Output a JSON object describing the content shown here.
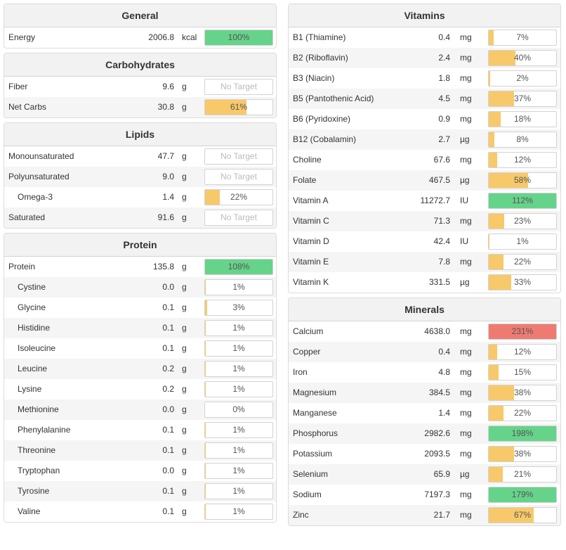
{
  "colors": {
    "under": "#f7c96a",
    "good": "#66d38a",
    "over": "#ee7b72"
  },
  "general": {
    "title": "General",
    "rows": [
      {
        "name": "Energy",
        "amount": "2006.8",
        "unit": "kcal",
        "pct_label": "100%",
        "level": 1.0,
        "status": "good"
      }
    ]
  },
  "carbohydrates": {
    "title": "Carbohydrates",
    "rows": [
      {
        "name": "Fiber",
        "amount": "9.6",
        "unit": "g",
        "pct_label": "No Target",
        "level": 0,
        "status": "none"
      },
      {
        "name": "Net Carbs",
        "amount": "30.8",
        "unit": "g",
        "pct_label": "61%",
        "level": 0.61,
        "status": "under"
      }
    ]
  },
  "lipids": {
    "title": "Lipids",
    "rows": [
      {
        "name": "Monounsaturated",
        "amount": "47.7",
        "unit": "g",
        "pct_label": "No Target",
        "level": 0,
        "status": "none"
      },
      {
        "name": "Polyunsaturated",
        "amount": "9.0",
        "unit": "g",
        "pct_label": "No Target",
        "level": 0,
        "status": "none"
      },
      {
        "name": "Omega-3",
        "amount": "1.4",
        "unit": "g",
        "pct_label": "22%",
        "level": 0.22,
        "status": "under",
        "sub": true
      },
      {
        "name": "Saturated",
        "amount": "91.6",
        "unit": "g",
        "pct_label": "No Target",
        "level": 0,
        "status": "none"
      }
    ]
  },
  "protein": {
    "title": "Protein",
    "rows": [
      {
        "name": "Protein",
        "amount": "135.8",
        "unit": "g",
        "pct_label": "108%",
        "level": 1.0,
        "status": "good"
      },
      {
        "name": "Cystine",
        "amount": "0.0",
        "unit": "g",
        "pct_label": "1%",
        "level": 0.01,
        "status": "under",
        "sub": true
      },
      {
        "name": "Glycine",
        "amount": "0.1",
        "unit": "g",
        "pct_label": "3%",
        "level": 0.03,
        "status": "under",
        "sub": true
      },
      {
        "name": "Histidine",
        "amount": "0.1",
        "unit": "g",
        "pct_label": "1%",
        "level": 0.01,
        "status": "under",
        "sub": true
      },
      {
        "name": "Isoleucine",
        "amount": "0.1",
        "unit": "g",
        "pct_label": "1%",
        "level": 0.01,
        "status": "under",
        "sub": true
      },
      {
        "name": "Leucine",
        "amount": "0.2",
        "unit": "g",
        "pct_label": "1%",
        "level": 0.01,
        "status": "under",
        "sub": true
      },
      {
        "name": "Lysine",
        "amount": "0.2",
        "unit": "g",
        "pct_label": "1%",
        "level": 0.01,
        "status": "under",
        "sub": true
      },
      {
        "name": "Methionine",
        "amount": "0.0",
        "unit": "g",
        "pct_label": "0%",
        "level": 0,
        "status": "under",
        "sub": true
      },
      {
        "name": "Phenylalanine",
        "amount": "0.1",
        "unit": "g",
        "pct_label": "1%",
        "level": 0.01,
        "status": "under",
        "sub": true
      },
      {
        "name": "Threonine",
        "amount": "0.1",
        "unit": "g",
        "pct_label": "1%",
        "level": 0.01,
        "status": "under",
        "sub": true
      },
      {
        "name": "Tryptophan",
        "amount": "0.0",
        "unit": "g",
        "pct_label": "1%",
        "level": 0.01,
        "status": "under",
        "sub": true
      },
      {
        "name": "Tyrosine",
        "amount": "0.1",
        "unit": "g",
        "pct_label": "1%",
        "level": 0.01,
        "status": "under",
        "sub": true
      },
      {
        "name": "Valine",
        "amount": "0.1",
        "unit": "g",
        "pct_label": "1%",
        "level": 0.01,
        "status": "under",
        "sub": true
      }
    ]
  },
  "vitamins": {
    "title": "Vitamins",
    "rows": [
      {
        "name": "B1 (Thiamine)",
        "amount": "0.4",
        "unit": "mg",
        "pct_label": "7%",
        "level": 0.07,
        "status": "under"
      },
      {
        "name": "B2 (Riboflavin)",
        "amount": "2.4",
        "unit": "mg",
        "pct_label": "40%",
        "level": 0.4,
        "status": "under"
      },
      {
        "name": "B3 (Niacin)",
        "amount": "1.8",
        "unit": "mg",
        "pct_label": "2%",
        "level": 0.02,
        "status": "under"
      },
      {
        "name": "B5 (Pantothenic Acid)",
        "amount": "4.5",
        "unit": "mg",
        "pct_label": "37%",
        "level": 0.37,
        "status": "under"
      },
      {
        "name": "B6 (Pyridoxine)",
        "amount": "0.9",
        "unit": "mg",
        "pct_label": "18%",
        "level": 0.18,
        "status": "under"
      },
      {
        "name": "B12 (Cobalamin)",
        "amount": "2.7",
        "unit": "µg",
        "pct_label": "8%",
        "level": 0.08,
        "status": "under"
      },
      {
        "name": "Choline",
        "amount": "67.6",
        "unit": "mg",
        "pct_label": "12%",
        "level": 0.12,
        "status": "under"
      },
      {
        "name": "Folate",
        "amount": "467.5",
        "unit": "µg",
        "pct_label": "58%",
        "level": 0.58,
        "status": "under"
      },
      {
        "name": "Vitamin A",
        "amount": "11272.7",
        "unit": "IU",
        "pct_label": "112%",
        "level": 1.0,
        "status": "good"
      },
      {
        "name": "Vitamin C",
        "amount": "71.3",
        "unit": "mg",
        "pct_label": "23%",
        "level": 0.23,
        "status": "under"
      },
      {
        "name": "Vitamin D",
        "amount": "42.4",
        "unit": "IU",
        "pct_label": "1%",
        "level": 0.01,
        "status": "under"
      },
      {
        "name": "Vitamin E",
        "amount": "7.8",
        "unit": "mg",
        "pct_label": "22%",
        "level": 0.22,
        "status": "under"
      },
      {
        "name": "Vitamin K",
        "amount": "331.5",
        "unit": "µg",
        "pct_label": "33%",
        "level": 0.33,
        "status": "under"
      }
    ]
  },
  "minerals": {
    "title": "Minerals",
    "rows": [
      {
        "name": "Calcium",
        "amount": "4638.0",
        "unit": "mg",
        "pct_label": "231%",
        "level": 1.0,
        "status": "over"
      },
      {
        "name": "Copper",
        "amount": "0.4",
        "unit": "mg",
        "pct_label": "12%",
        "level": 0.12,
        "status": "under"
      },
      {
        "name": "Iron",
        "amount": "4.8",
        "unit": "mg",
        "pct_label": "15%",
        "level": 0.15,
        "status": "under"
      },
      {
        "name": "Magnesium",
        "amount": "384.5",
        "unit": "mg",
        "pct_label": "38%",
        "level": 0.38,
        "status": "under"
      },
      {
        "name": "Manganese",
        "amount": "1.4",
        "unit": "mg",
        "pct_label": "22%",
        "level": 0.22,
        "status": "under"
      },
      {
        "name": "Phosphorus",
        "amount": "2982.6",
        "unit": "mg",
        "pct_label": "198%",
        "level": 1.0,
        "status": "good"
      },
      {
        "name": "Potassium",
        "amount": "2093.5",
        "unit": "mg",
        "pct_label": "38%",
        "level": 0.38,
        "status": "under"
      },
      {
        "name": "Selenium",
        "amount": "65.9",
        "unit": "µg",
        "pct_label": "21%",
        "level": 0.21,
        "status": "under"
      },
      {
        "name": "Sodium",
        "amount": "7197.3",
        "unit": "mg",
        "pct_label": "179%",
        "level": 1.0,
        "status": "good"
      },
      {
        "name": "Zinc",
        "amount": "21.7",
        "unit": "mg",
        "pct_label": "67%",
        "level": 0.67,
        "status": "under"
      }
    ]
  }
}
